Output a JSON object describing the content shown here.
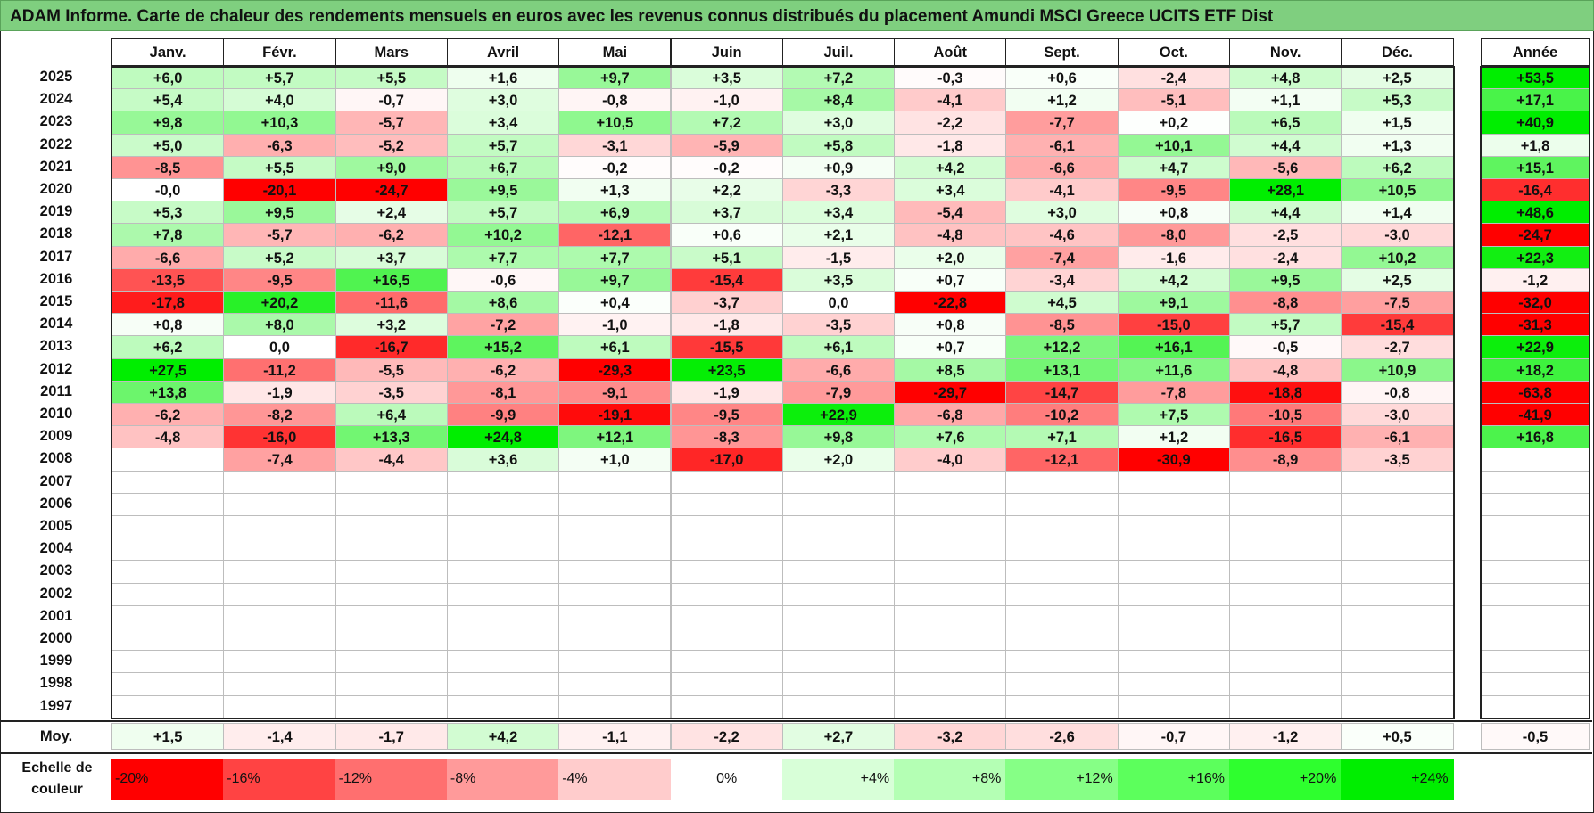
{
  "title": "ADAM Informe. Carte de chaleur des rendements mensuels en euros avec les revenus connus distribués du placement Amundi MSCI Greece UCITS ETF Dist",
  "chart_data": {
    "type": "heatmap",
    "months": [
      "Janv.",
      "Févr.",
      "Mars",
      "Avril",
      "Mai",
      "Juin",
      "Juil.",
      "Août",
      "Sept.",
      "Oct.",
      "Nov.",
      "Déc."
    ],
    "year_header": "Année",
    "rows": [
      {
        "year": "2025",
        "values": [
          6.0,
          5.7,
          5.5,
          1.6,
          9.7,
          3.5,
          7.2,
          -0.3,
          0.6,
          -2.4,
          4.8,
          2.5
        ],
        "annual": 53.5
      },
      {
        "year": "2024",
        "values": [
          5.4,
          4.0,
          -0.7,
          3.0,
          -0.8,
          -1.0,
          8.4,
          -4.1,
          1.2,
          -5.1,
          1.1,
          5.3
        ],
        "annual": 17.1
      },
      {
        "year": "2023",
        "values": [
          9.8,
          10.3,
          -5.7,
          3.4,
          10.5,
          7.2,
          3.0,
          -2.2,
          -7.7,
          0.2,
          6.5,
          1.5
        ],
        "annual": 40.9
      },
      {
        "year": "2022",
        "values": [
          5.0,
          -6.3,
          -5.2,
          5.7,
          -3.1,
          -5.9,
          5.8,
          -1.8,
          -6.1,
          10.1,
          4.4,
          1.3
        ],
        "annual": 1.8
      },
      {
        "year": "2021",
        "values": [
          -8.5,
          5.5,
          9.0,
          6.7,
          -0.2,
          -0.2,
          0.9,
          4.2,
          -6.6,
          4.7,
          -5.6,
          6.2
        ],
        "annual": 15.1
      },
      {
        "year": "2020",
        "values": [
          "-0,0",
          -20.1,
          -24.7,
          9.5,
          1.3,
          2.2,
          -3.3,
          3.4,
          -4.1,
          -9.5,
          28.1,
          10.5
        ],
        "annual": -16.4
      },
      {
        "year": "2019",
        "values": [
          5.3,
          9.5,
          2.4,
          5.7,
          6.9,
          3.7,
          3.4,
          -5.4,
          3.0,
          0.8,
          4.4,
          1.4
        ],
        "annual": 48.6
      },
      {
        "year": "2018",
        "values": [
          7.8,
          -5.7,
          -6.2,
          10.2,
          -12.1,
          0.6,
          2.1,
          -4.8,
          -4.6,
          -8.0,
          -2.5,
          -3.0
        ],
        "annual": -24.7
      },
      {
        "year": "2017",
        "values": [
          -6.6,
          5.2,
          3.7,
          7.7,
          7.7,
          5.1,
          -1.5,
          2.0,
          -7.4,
          -1.6,
          -2.4,
          10.2
        ],
        "annual": 22.3
      },
      {
        "year": "2016",
        "values": [
          -13.5,
          -9.5,
          16.5,
          -0.6,
          9.7,
          -15.4,
          3.5,
          0.7,
          -3.4,
          4.2,
          9.5,
          2.5
        ],
        "annual": -1.2
      },
      {
        "year": "2015",
        "values": [
          -17.8,
          20.2,
          -11.6,
          8.6,
          0.4,
          -3.7,
          0.0,
          -22.8,
          4.5,
          9.1,
          -8.8,
          -7.5
        ],
        "annual": -32.0
      },
      {
        "year": "2014",
        "values": [
          0.8,
          8.0,
          3.2,
          -7.2,
          -1.0,
          -1.8,
          -3.5,
          0.8,
          -8.5,
          -15.0,
          5.7,
          -15.4
        ],
        "annual": -31.3
      },
      {
        "year": "2013",
        "values": [
          6.2,
          0.0,
          -16.7,
          15.2,
          6.1,
          -15.5,
          6.1,
          0.7,
          12.2,
          16.1,
          -0.5,
          -2.7
        ],
        "annual": 22.9
      },
      {
        "year": "2012",
        "values": [
          27.5,
          -11.2,
          -5.5,
          -6.2,
          -29.3,
          23.5,
          -6.6,
          8.5,
          13.1,
          11.6,
          -4.8,
          10.9
        ],
        "annual": 18.2
      },
      {
        "year": "2011",
        "values": [
          13.8,
          -1.9,
          -3.5,
          -8.1,
          -9.1,
          -1.9,
          -7.9,
          -29.7,
          -14.7,
          -7.8,
          -18.8,
          -0.8
        ],
        "annual": -63.8
      },
      {
        "year": "2010",
        "values": [
          -6.2,
          -8.2,
          6.4,
          -9.9,
          -19.1,
          -9.5,
          22.9,
          -6.8,
          -10.2,
          7.5,
          -10.5,
          -3.0
        ],
        "annual": -41.9
      },
      {
        "year": "2009",
        "values": [
          -4.8,
          -16.0,
          13.3,
          24.8,
          12.1,
          -8.3,
          9.8,
          7.6,
          7.1,
          1.2,
          -16.5,
          -6.1
        ],
        "annual": 16.8
      },
      {
        "year": "2008",
        "values": [
          null,
          -7.4,
          -4.4,
          3.6,
          1.0,
          -17.0,
          2.0,
          -4.0,
          -12.1,
          -30.9,
          -8.9,
          -3.5
        ],
        "annual": null
      },
      {
        "year": "2007",
        "values": [
          null,
          null,
          null,
          null,
          null,
          null,
          null,
          null,
          null,
          null,
          null,
          null
        ],
        "annual": null
      },
      {
        "year": "2006",
        "values": [
          null,
          null,
          null,
          null,
          null,
          null,
          null,
          null,
          null,
          null,
          null,
          null
        ],
        "annual": null
      },
      {
        "year": "2005",
        "values": [
          null,
          null,
          null,
          null,
          null,
          null,
          null,
          null,
          null,
          null,
          null,
          null
        ],
        "annual": null
      },
      {
        "year": "2004",
        "values": [
          null,
          null,
          null,
          null,
          null,
          null,
          null,
          null,
          null,
          null,
          null,
          null
        ],
        "annual": null
      },
      {
        "year": "2003",
        "values": [
          null,
          null,
          null,
          null,
          null,
          null,
          null,
          null,
          null,
          null,
          null,
          null
        ],
        "annual": null
      },
      {
        "year": "2002",
        "values": [
          null,
          null,
          null,
          null,
          null,
          null,
          null,
          null,
          null,
          null,
          null,
          null
        ],
        "annual": null
      },
      {
        "year": "2001",
        "values": [
          null,
          null,
          null,
          null,
          null,
          null,
          null,
          null,
          null,
          null,
          null,
          null
        ],
        "annual": null
      },
      {
        "year": "2000",
        "values": [
          null,
          null,
          null,
          null,
          null,
          null,
          null,
          null,
          null,
          null,
          null,
          null
        ],
        "annual": null
      },
      {
        "year": "1999",
        "values": [
          null,
          null,
          null,
          null,
          null,
          null,
          null,
          null,
          null,
          null,
          null,
          null
        ],
        "annual": null
      },
      {
        "year": "1998",
        "values": [
          null,
          null,
          null,
          null,
          null,
          null,
          null,
          null,
          null,
          null,
          null,
          null
        ],
        "annual": null
      },
      {
        "year": "1997",
        "values": [
          null,
          null,
          null,
          null,
          null,
          null,
          null,
          null,
          null,
          null,
          null,
          null
        ],
        "annual": null
      }
    ],
    "average": {
      "label": "Moy.",
      "values": [
        1.5,
        -1.4,
        -1.7,
        4.2,
        -1.1,
        -2.2,
        2.7,
        -3.2,
        -2.6,
        -0.7,
        -1.2,
        0.5
      ],
      "annual": -0.5
    },
    "scale": {
      "label": "Echelle de couleur",
      "items": [
        {
          "label": "-20%",
          "value": -20,
          "color": "#ff0000"
        },
        {
          "label": "-16%",
          "value": -16,
          "color": "#ff4343"
        },
        {
          "label": "-12%",
          "value": -12,
          "color": "#ff6f6f"
        },
        {
          "label": "-8%",
          "value": -8,
          "color": "#ff9a9a"
        },
        {
          "label": "-4%",
          "value": -4,
          "color": "#ffcccc"
        },
        {
          "label": "0%",
          "value": 0,
          "color": "#ffffff"
        },
        {
          "label": "+4%",
          "value": 4,
          "color": "#d8ffd8"
        },
        {
          "label": "+8%",
          "value": 8,
          "color": "#b4ffb4"
        },
        {
          "label": "+12%",
          "value": 12,
          "color": "#86ff86"
        },
        {
          "label": "+16%",
          "value": 16,
          "color": "#5cff5c"
        },
        {
          "label": "+20%",
          "value": 20,
          "color": "#2eff2e"
        },
        {
          "label": "+24%",
          "value": 24,
          "color": "#00ee00"
        }
      ]
    }
  }
}
